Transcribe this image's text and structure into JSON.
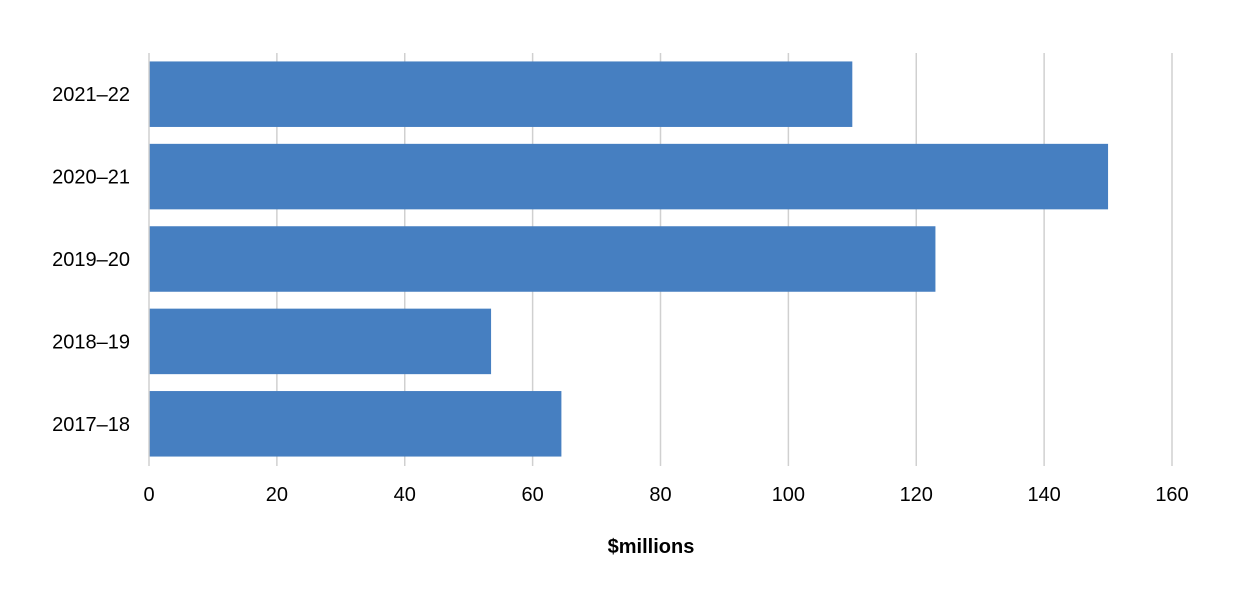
{
  "chart_data": {
    "type": "bar",
    "orientation": "horizontal",
    "categories": [
      "2021–22",
      "2020–21",
      "2019–20",
      "2018–19",
      "2017–18"
    ],
    "values": [
      110,
      150,
      123,
      53.5,
      64.5
    ],
    "xlabel": "$millions",
    "ylabel": "",
    "xlim": [
      0,
      160
    ],
    "xticks": [
      "0",
      "20",
      "40",
      "60",
      "80",
      "100",
      "120",
      "140",
      "160"
    ],
    "grid": "vertical",
    "bar_color": "#467fc1",
    "legend": "none"
  }
}
